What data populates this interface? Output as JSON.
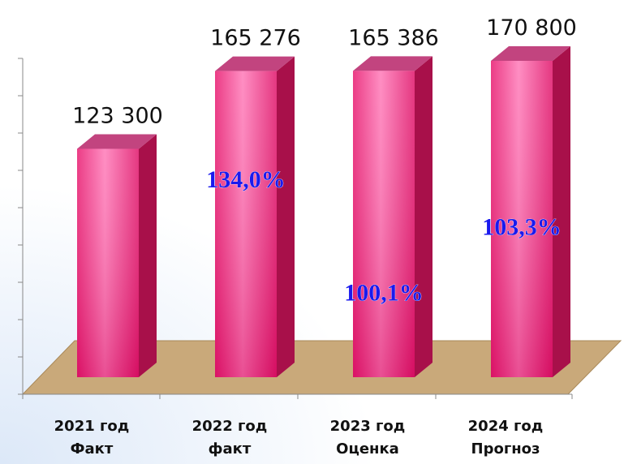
{
  "chart_data": {
    "type": "bar3d",
    "categories": [
      [
        "2021 год",
        "Факт"
      ],
      [
        "2022 год",
        "факт"
      ],
      [
        "2023 год",
        "Оценка"
      ],
      [
        "2024 год",
        "Прогноз"
      ]
    ],
    "values": [
      123300,
      165276,
      165386,
      170800
    ],
    "value_labels": [
      "123 300",
      "165 276",
      "165 386",
      "170 800"
    ],
    "growth": [
      null,
      134.0,
      100.1,
      103.3
    ],
    "growth_labels": [
      null,
      "134,0%",
      "100,1%",
      "103,3%"
    ],
    "color": "#f0307f",
    "ylim": [
      0,
      180000
    ],
    "yticks": [
      0,
      20000,
      40000,
      60000,
      80000,
      100000,
      120000,
      140000,
      160000,
      180000
    ]
  }
}
